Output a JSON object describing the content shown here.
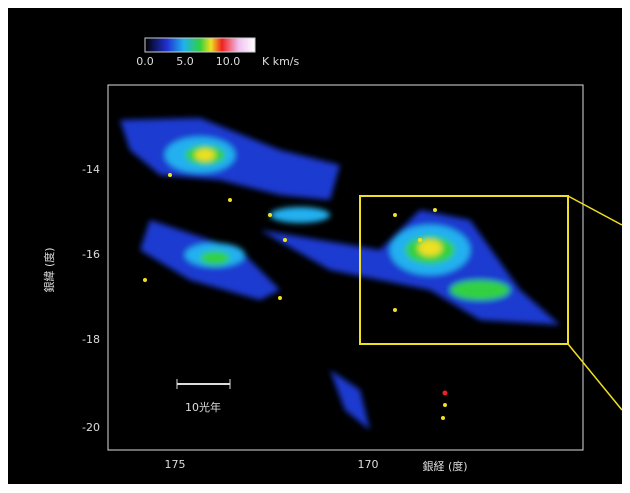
{
  "figure": {
    "colorbar": {
      "labels": [
        "0.0",
        "5.0",
        "10.0"
      ],
      "unit": "K km/s"
    },
    "y_axis": {
      "label": "銀緯 (度)",
      "ticks": [
        "-14",
        "-16",
        "-18",
        "-20"
      ]
    },
    "x_axis": {
      "label": "銀経 (度)",
      "ticks": [
        "175",
        "170"
      ]
    },
    "scale_bar": "10光年"
  }
}
